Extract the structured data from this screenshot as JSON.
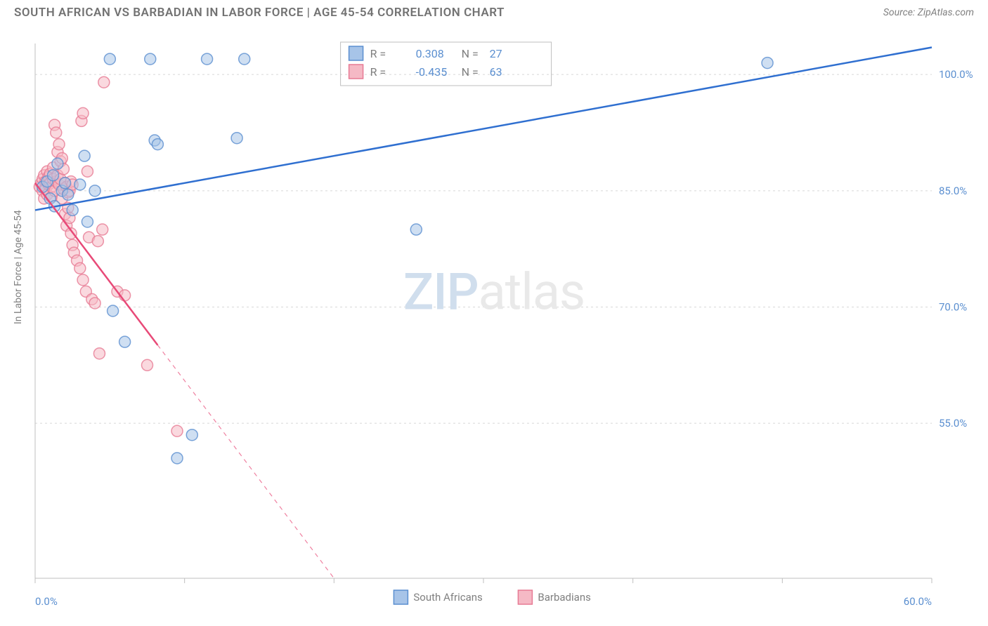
{
  "header": {
    "title": "SOUTH AFRICAN VS BARBADIAN IN LABOR FORCE | AGE 45-54 CORRELATION CHART",
    "source": "Source: ZipAtlas.com"
  },
  "watermark": {
    "part1": "ZIP",
    "part2": "atlas"
  },
  "chart": {
    "type": "scatter",
    "yaxis_label": "In Labor Force | Age 45-54",
    "background_color": "#ffffff",
    "grid_color": "#d8d8d8",
    "axis_color": "#bfbfbf",
    "tick_label_color": "#5b8fd0",
    "xlim": [
      0,
      60
    ],
    "ylim": [
      35,
      104
    ],
    "x_ticks": [
      0,
      10,
      20,
      30,
      40,
      50,
      60
    ],
    "x_tick_labels": [
      "0.0%",
      "",
      "",
      "",
      "",
      "",
      "60.0%"
    ],
    "y_gridlines": [
      55,
      70,
      85,
      100
    ],
    "y_tick_labels": [
      "55.0%",
      "70.0%",
      "85.0%",
      "100.0%"
    ],
    "marker_radius": 8,
    "marker_opacity": 0.55,
    "marker_stroke_width": 1.5,
    "trend_line_width": 2.5,
    "series": [
      {
        "name": "South Africans",
        "color_fill": "#a7c4e8",
        "color_stroke": "#5b8fd0",
        "trend_color": "#2f6fd0",
        "R": "0.308",
        "N": "27",
        "trend": {
          "x1": 0,
          "y1": 82.5,
          "x2": 60,
          "y2": 103.5,
          "dash_from_x": 60
        },
        "points": [
          [
            0.5,
            85.5
          ],
          [
            0.8,
            86.2
          ],
          [
            1.0,
            84.0
          ],
          [
            1.2,
            87.0
          ],
          [
            1.3,
            83.0
          ],
          [
            1.5,
            88.5
          ],
          [
            1.8,
            85.0
          ],
          [
            2.0,
            86.0
          ],
          [
            2.2,
            84.5
          ],
          [
            2.5,
            82.5
          ],
          [
            3.0,
            85.8
          ],
          [
            3.3,
            89.5
          ],
          [
            3.5,
            81.0
          ],
          [
            4.0,
            85.0
          ],
          [
            5.0,
            102.0
          ],
          [
            5.2,
            69.5
          ],
          [
            6.0,
            65.5
          ],
          [
            7.7,
            102.0
          ],
          [
            8.0,
            91.5
          ],
          [
            8.2,
            91.0
          ],
          [
            9.5,
            50.5
          ],
          [
            10.5,
            53.5
          ],
          [
            11.5,
            102.0
          ],
          [
            13.5,
            91.8
          ],
          [
            14.0,
            102.0
          ],
          [
            25.5,
            80.0
          ],
          [
            49.0,
            101.5
          ]
        ]
      },
      {
        "name": "Barbadians",
        "color_fill": "#f5b9c5",
        "color_stroke": "#e77a94",
        "trend_color": "#e84a78",
        "R": "-0.435",
        "N": "63",
        "trend": {
          "x1": 0,
          "y1": 86.0,
          "x2": 20,
          "y2": 35.0,
          "dash_from_x": 8.2
        },
        "points": [
          [
            0.3,
            85.5
          ],
          [
            0.4,
            86.0
          ],
          [
            0.5,
            86.5
          ],
          [
            0.5,
            85.0
          ],
          [
            0.6,
            87.0
          ],
          [
            0.6,
            84.0
          ],
          [
            0.7,
            86.2
          ],
          [
            0.7,
            85.2
          ],
          [
            0.8,
            87.5
          ],
          [
            0.8,
            84.5
          ],
          [
            0.9,
            86.8
          ],
          [
            0.9,
            85.8
          ],
          [
            1.0,
            86.0
          ],
          [
            1.0,
            87.2
          ],
          [
            1.1,
            84.2
          ],
          [
            1.1,
            85.5
          ],
          [
            1.2,
            86.5
          ],
          [
            1.2,
            88.0
          ],
          [
            1.3,
            85.0
          ],
          [
            1.3,
            93.5
          ],
          [
            1.4,
            86.2
          ],
          [
            1.4,
            92.5
          ],
          [
            1.5,
            87.0
          ],
          [
            1.5,
            90.0
          ],
          [
            1.6,
            85.8
          ],
          [
            1.6,
            91.0
          ],
          [
            1.7,
            86.5
          ],
          [
            1.7,
            88.8
          ],
          [
            1.8,
            84.0
          ],
          [
            1.8,
            89.2
          ],
          [
            1.9,
            85.2
          ],
          [
            1.9,
            87.8
          ],
          [
            2.0,
            86.0
          ],
          [
            2.0,
            82.0
          ],
          [
            2.1,
            85.5
          ],
          [
            2.1,
            80.5
          ],
          [
            2.2,
            84.8
          ],
          [
            2.2,
            82.8
          ],
          [
            2.3,
            85.0
          ],
          [
            2.3,
            81.5
          ],
          [
            2.4,
            86.2
          ],
          [
            2.4,
            79.5
          ],
          [
            2.5,
            85.8
          ],
          [
            2.5,
            78.0
          ],
          [
            2.6,
            77.0
          ],
          [
            2.8,
            76.0
          ],
          [
            3.0,
            75.0
          ],
          [
            3.1,
            94.0
          ],
          [
            3.2,
            73.5
          ],
          [
            3.2,
            95.0
          ],
          [
            3.4,
            72.0
          ],
          [
            3.5,
            87.5
          ],
          [
            3.6,
            79.0
          ],
          [
            3.8,
            71.0
          ],
          [
            4.0,
            70.5
          ],
          [
            4.2,
            78.5
          ],
          [
            4.3,
            64.0
          ],
          [
            4.5,
            80.0
          ],
          [
            4.6,
            99.0
          ],
          [
            5.5,
            72.0
          ],
          [
            6.0,
            71.5
          ],
          [
            7.5,
            62.5
          ],
          [
            9.5,
            54.0
          ]
        ]
      }
    ],
    "stats_legend": {
      "box_stroke": "#bfbfbf",
      "label_R": "R =",
      "label_N": "N =",
      "text_color": "#808080",
      "value_color": "#5b8fd0"
    },
    "bottom_legend": {
      "items": [
        {
          "label": "South Africans",
          "swatch_fill": "#a7c4e8",
          "swatch_stroke": "#5b8fd0"
        },
        {
          "label": "Barbadians",
          "swatch_fill": "#f5b9c5",
          "swatch_stroke": "#e77a94"
        }
      ],
      "text_color": "#808080"
    }
  }
}
